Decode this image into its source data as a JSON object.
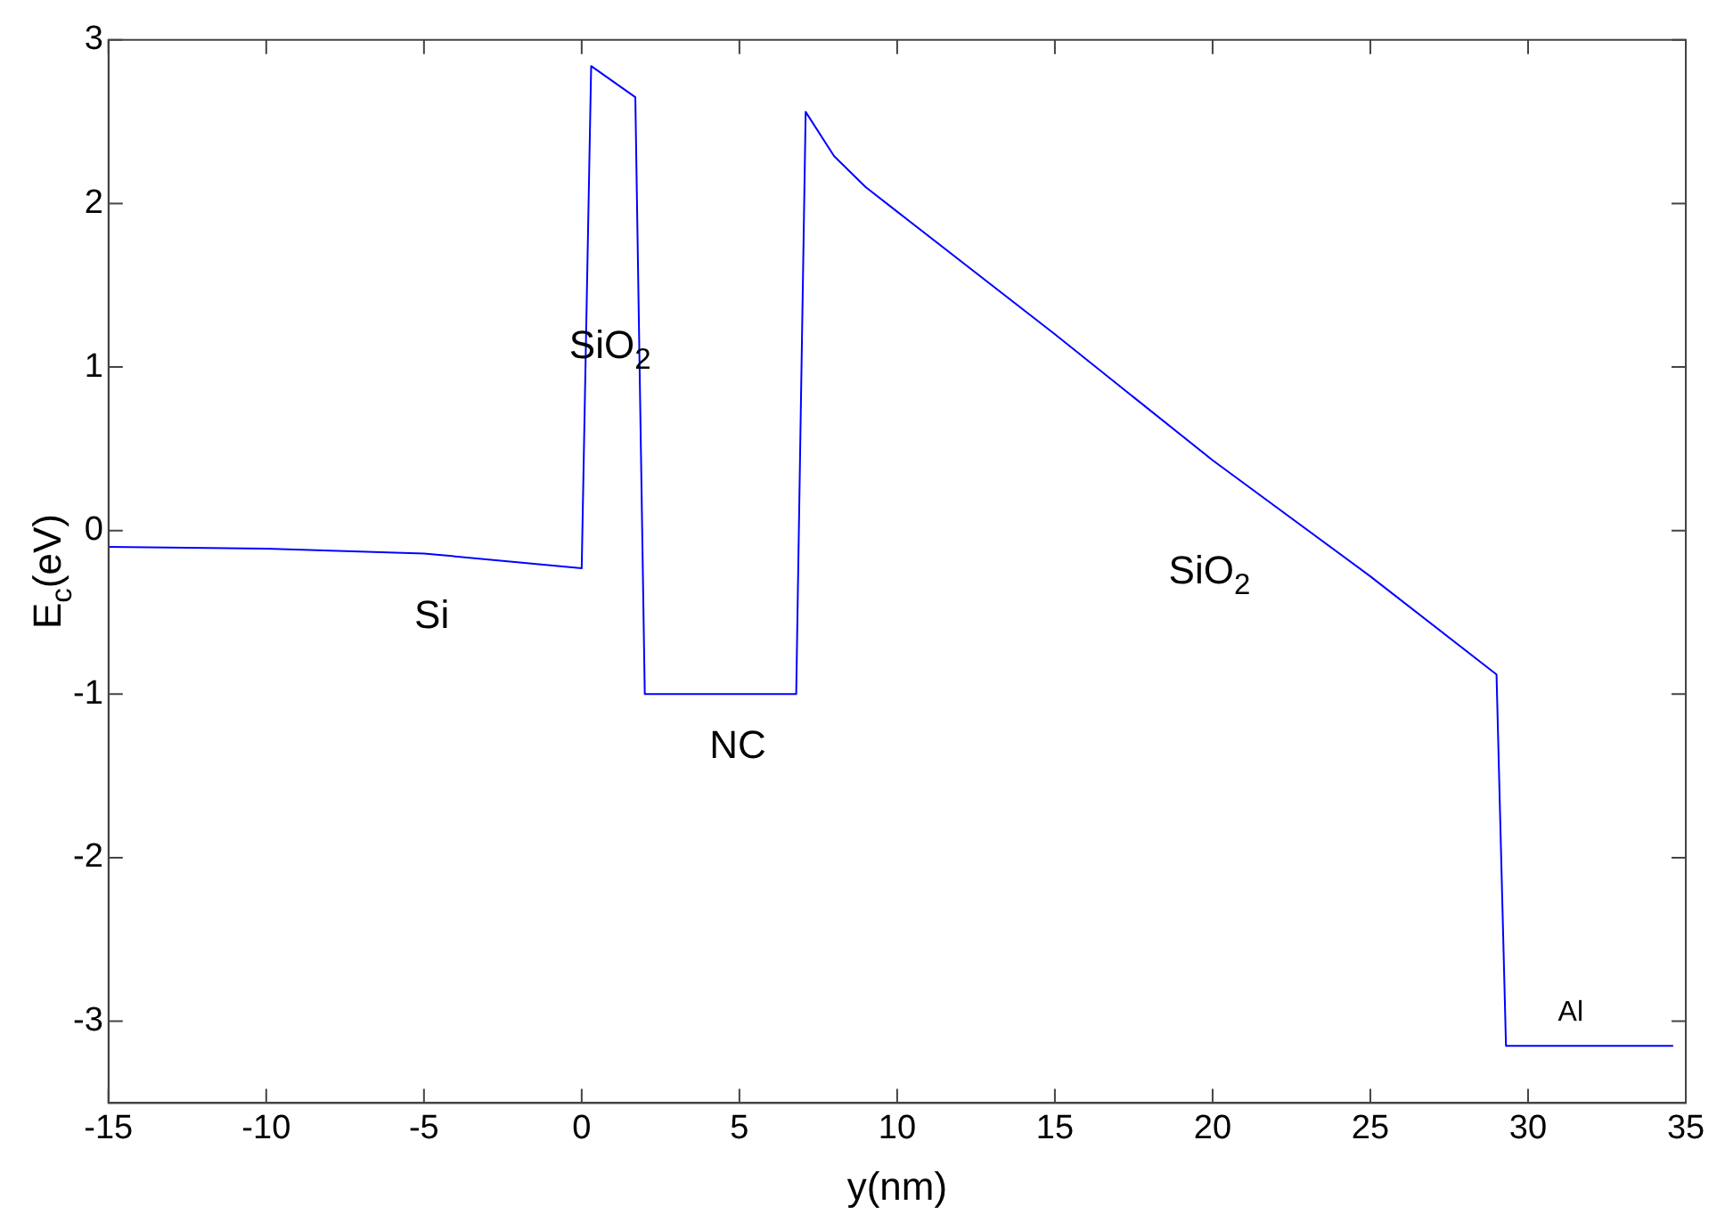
{
  "chart_data": {
    "type": "line",
    "xlabel": "y(nm)",
    "ylabel": "E$_{c}$(eV)",
    "xlim": [
      -15,
      35
    ],
    "xticks": [
      -15,
      -10,
      -5,
      0,
      5,
      10,
      15,
      20,
      25,
      30,
      35
    ],
    "ylim": [
      -3.5,
      3
    ],
    "yticks": [
      -3,
      -2,
      -1,
      0,
      1,
      2,
      3
    ],
    "grid": false,
    "legend": false,
    "marker": "none",
    "line_style": "solid",
    "series": [
      {
        "color": "#0000ff",
        "x": [
          -15,
          -10,
          -5,
          0,
          0.3,
          1.7,
          2.0,
          6.8,
          7.1,
          8,
          9,
          10,
          15,
          20,
          25,
          29,
          29.3,
          34.6
        ],
        "values": [
          -0.1,
          -0.11,
          -0.14,
          -0.23,
          2.84,
          2.65,
          -1.0,
          -1.0,
          2.56,
          2.29,
          2.1,
          1.95,
          1.2,
          0.43,
          -0.28,
          -0.88,
          -3.15,
          -3.15
        ]
      }
    ],
    "annotations": [
      "Si",
      "SiO$_{2}$",
      "NC",
      "SiO$_{2}$",
      "Al"
    ]
  }
}
